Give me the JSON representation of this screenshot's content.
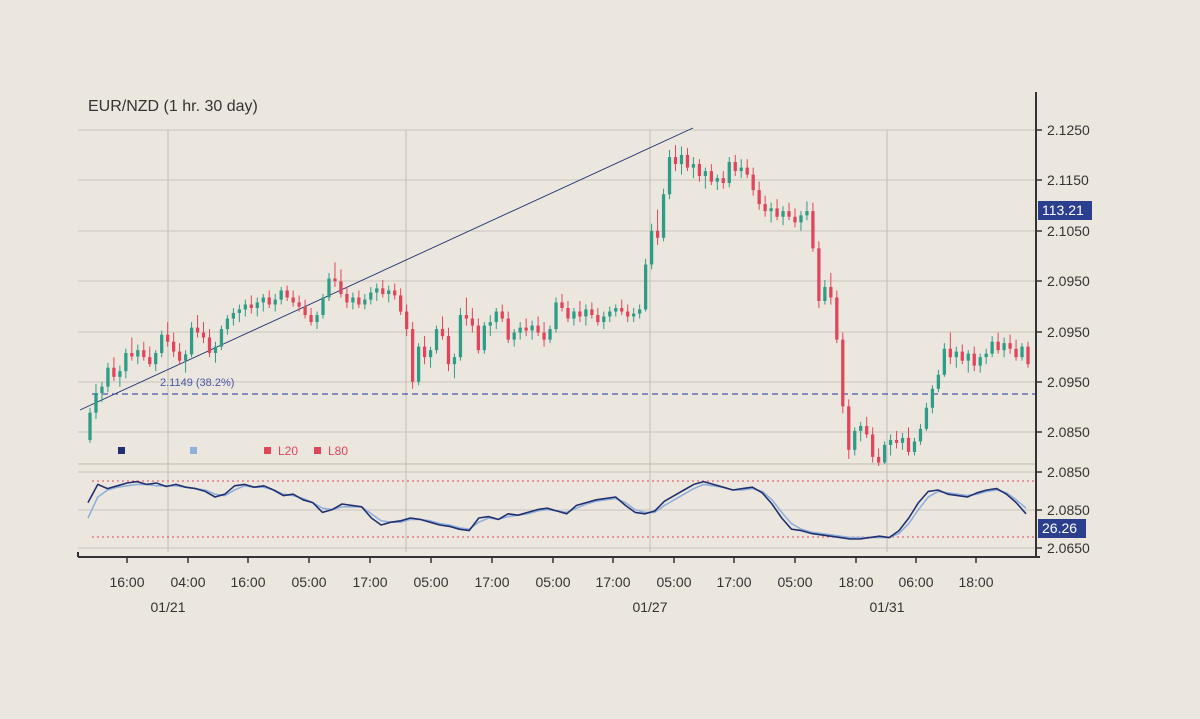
{
  "chart_data": {
    "type": "candlestick",
    "title": "EUR/NZD (1 hr.  30 day)",
    "colors": {
      "up": "#2e9c86",
      "down": "#e0455a",
      "line_dark": "#22306e",
      "line_light": "#8fb0dc",
      "fib": "#4a56a6",
      "level": "#e0455a",
      "badge": "#2c3f8f",
      "grid": "#c9c5bd"
    },
    "x_axis": {
      "time_labels": [
        "16:00",
        "04:00",
        "16:00",
        "05:00",
        "17:00",
        "05:00",
        "17:00",
        "05:00",
        "17:00",
        "05:00",
        "17:00",
        "05:00",
        "18:00",
        "06:00",
        "18:00"
      ],
      "date_labels": [
        "01/21",
        "01/27",
        "01/31"
      ],
      "date_positions": [
        2,
        9,
        12
      ]
    },
    "price_axis": {
      "tick_labels": [
        "2.1250",
        "2.1150",
        "2.1050",
        "2.0950",
        "2.0950",
        "2.0950",
        "2.0850"
      ],
      "badge": "113.21"
    },
    "oscillator_axis": {
      "tick_labels": [
        "2.0850",
        "2.0850",
        "2.0650"
      ],
      "badge": "26.26"
    },
    "fib_label": "2.1149 (38.2%)",
    "legend": [
      {
        "label": "",
        "color": "#22306e"
      },
      {
        "label": "",
        "color": "#8fb0dc"
      },
      {
        "label": "L20",
        "color": "#e0455a"
      },
      {
        "label": "L80",
        "color": "#e0455a"
      }
    ],
    "candles": [
      [
        2.0822,
        2.0868,
        2.0818,
        2.0861
      ],
      [
        2.0861,
        2.0902,
        2.0852,
        2.0889
      ],
      [
        2.0889,
        2.0905,
        2.0876,
        2.0898
      ],
      [
        2.0898,
        2.0932,
        2.089,
        2.0925
      ],
      [
        2.0925,
        2.094,
        2.0906,
        2.0912
      ],
      [
        2.0912,
        2.0928,
        2.0898,
        2.092
      ],
      [
        2.092,
        2.0952,
        2.091,
        2.0946
      ],
      [
        2.0946,
        2.0968,
        2.0935,
        2.0941
      ],
      [
        2.0941,
        2.0958,
        2.093,
        2.095
      ],
      [
        2.095,
        2.0962,
        2.0935,
        2.094
      ],
      [
        2.094,
        2.0955,
        2.0926,
        2.093
      ],
      [
        2.093,
        2.095,
        2.092,
        2.0946
      ],
      [
        2.0946,
        2.0978,
        2.094,
        2.0972
      ],
      [
        2.0972,
        2.099,
        2.0955,
        2.0962
      ],
      [
        2.0962,
        2.0975,
        2.094,
        2.0948
      ],
      [
        2.0948,
        2.096,
        2.093,
        2.0935
      ],
      [
        2.0935,
        2.095,
        2.0918,
        2.0944
      ],
      [
        2.0944,
        2.099,
        2.094,
        2.0982
      ],
      [
        2.0982,
        2.1,
        2.0968,
        2.0975
      ],
      [
        2.0975,
        2.099,
        2.096,
        2.0968
      ],
      [
        2.0968,
        2.098,
        2.094,
        2.0946
      ],
      [
        2.0946,
        2.0962,
        2.0932,
        2.0955
      ],
      [
        2.0955,
        2.0985,
        2.095,
        2.098
      ],
      [
        2.098,
        2.1,
        2.0972,
        2.0995
      ],
      [
        2.0995,
        2.101,
        2.0985,
        2.1003
      ],
      [
        2.1003,
        2.1015,
        2.099,
        2.1008
      ],
      [
        2.1008,
        2.1022,
        2.0998,
        2.1015
      ],
      [
        2.1015,
        2.1028,
        2.1002,
        2.101
      ],
      [
        2.101,
        2.1025,
        2.0998,
        2.1018
      ],
      [
        2.1018,
        2.103,
        2.1005,
        2.1025
      ],
      [
        2.1025,
        2.1035,
        2.101,
        2.1015
      ],
      [
        2.1015,
        2.103,
        2.1005,
        2.1022
      ],
      [
        2.1022,
        2.104,
        2.1015,
        2.1035
      ],
      [
        2.1035,
        2.1042,
        2.102,
        2.1025
      ],
      [
        2.1025,
        2.1035,
        2.1012,
        2.1018
      ],
      [
        2.1018,
        2.1028,
        2.1005,
        2.1012
      ],
      [
        2.1012,
        2.1022,
        2.0995,
        2.1
      ],
      [
        2.1,
        2.101,
        2.0985,
        2.099
      ],
      [
        2.099,
        2.1005,
        2.098,
        2.1
      ],
      [
        2.1,
        2.103,
        2.0995,
        2.1025
      ],
      [
        2.1025,
        2.106,
        2.102,
        2.1052
      ],
      [
        2.1052,
        2.1075,
        2.104,
        2.1048
      ],
      [
        2.1048,
        2.1065,
        2.1025,
        2.103
      ],
      [
        2.103,
        2.104,
        2.101,
        2.1018
      ],
      [
        2.1018,
        2.1032,
        2.1008,
        2.1025
      ],
      [
        2.1025,
        2.1035,
        2.101,
        2.1015
      ],
      [
        2.1015,
        2.103,
        2.1008,
        2.1022
      ],
      [
        2.1022,
        2.104,
        2.1015,
        2.1032
      ],
      [
        2.1032,
        2.1045,
        2.102,
        2.1038
      ],
      [
        2.1038,
        2.105,
        2.1025,
        2.103
      ],
      [
        2.103,
        2.1042,
        2.1018,
        2.1035
      ],
      [
        2.1035,
        2.1045,
        2.1022,
        2.1028
      ],
      [
        2.1028,
        2.1038,
        2.1,
        2.1005
      ],
      [
        2.1005,
        2.1015,
        2.097,
        2.098
      ],
      [
        2.098,
        2.099,
        2.0895,
        2.0905
      ],
      [
        2.0905,
        2.096,
        2.09,
        2.0955
      ],
      [
        2.0955,
        2.097,
        2.093,
        2.094
      ],
      [
        2.094,
        2.0955,
        2.0925,
        2.095
      ],
      [
        2.095,
        2.0985,
        2.0945,
        2.098
      ],
      [
        2.098,
        2.0998,
        2.0965,
        2.097
      ],
      [
        2.097,
        2.0982,
        2.092,
        2.093
      ],
      [
        2.093,
        2.0945,
        2.091,
        2.094
      ],
      [
        2.094,
        2.101,
        2.0935,
        2.1
      ],
      [
        2.1,
        2.1025,
        2.0985,
        2.0995
      ],
      [
        2.0995,
        2.101,
        2.0975,
        2.0985
      ],
      [
        2.0985,
        2.0995,
        2.0945,
        2.095
      ],
      [
        2.095,
        2.099,
        2.0945,
        2.0985
      ],
      [
        2.0985,
        2.1,
        2.097,
        2.099
      ],
      [
        2.099,
        2.101,
        2.098,
        2.1005
      ],
      [
        2.1005,
        2.1015,
        2.099,
        2.0995
      ],
      [
        2.0995,
        2.1005,
        2.096,
        2.0965
      ],
      [
        2.0965,
        2.098,
        2.0955,
        2.0975
      ],
      [
        2.0975,
        2.099,
        2.0965,
        2.0982
      ],
      [
        2.0982,
        2.0995,
        2.097,
        2.0978
      ],
      [
        2.0978,
        2.0992,
        2.0965,
        2.0985
      ],
      [
        2.0985,
        2.0998,
        2.097,
        2.0975
      ],
      [
        2.0975,
        2.099,
        2.0955,
        2.0965
      ],
      [
        2.0965,
        2.0985,
        2.096,
        2.098
      ],
      [
        2.098,
        2.1025,
        2.0975,
        2.1018
      ],
      [
        2.1018,
        2.103,
        2.1005,
        2.101
      ],
      [
        2.101,
        2.102,
        2.099,
        2.0995
      ],
      [
        2.0995,
        2.101,
        2.0985,
        2.1005
      ],
      [
        2.1005,
        2.102,
        2.099,
        2.0998
      ],
      [
        2.0998,
        2.1015,
        2.0985,
        2.1008
      ],
      [
        2.1008,
        2.1018,
        2.0995,
        2.1
      ],
      [
        2.1,
        2.101,
        2.0985,
        2.099
      ],
      [
        2.099,
        2.1005,
        2.098,
        2.0998
      ],
      [
        2.0998,
        2.1012,
        2.099,
        2.1005
      ],
      [
        2.1005,
        2.1015,
        2.0998,
        2.101
      ],
      [
        2.101,
        2.1022,
        2.1,
        2.1005
      ],
      [
        2.1005,
        2.1015,
        2.099,
        2.0998
      ],
      [
        2.0998,
        2.101,
        2.099,
        2.1002
      ],
      [
        2.1002,
        2.1015,
        2.0995,
        2.1008
      ],
      [
        2.1008,
        2.108,
        2.1005,
        2.1072
      ],
      [
        2.1072,
        2.113,
        2.1065,
        2.112
      ],
      [
        2.112,
        2.115,
        2.11,
        2.111
      ],
      [
        2.111,
        2.118,
        2.1105,
        2.1172
      ],
      [
        2.1172,
        2.1235,
        2.1165,
        2.1225
      ],
      [
        2.1225,
        2.1242,
        2.1205,
        2.1215
      ],
      [
        2.1215,
        2.124,
        2.12,
        2.1228
      ],
      [
        2.1228,
        2.1238,
        2.1205,
        2.121
      ],
      [
        2.121,
        2.1225,
        2.1195,
        2.1215
      ],
      [
        2.1215,
        2.1222,
        2.119,
        2.1198
      ],
      [
        2.1198,
        2.121,
        2.118,
        2.1205
      ],
      [
        2.1205,
        2.1215,
        2.1185,
        2.119
      ],
      [
        2.119,
        2.12,
        2.1178,
        2.1195
      ],
      [
        2.1195,
        2.1205,
        2.118,
        2.1188
      ],
      [
        2.1188,
        2.1225,
        2.1182,
        2.1218
      ],
      [
        2.1218,
        2.1228,
        2.1198,
        2.1205
      ],
      [
        2.1205,
        2.1222,
        2.1195,
        2.121
      ],
      [
        2.121,
        2.1222,
        2.1195,
        2.12
      ],
      [
        2.12,
        2.121,
        2.117,
        2.1178
      ],
      [
        2.1178,
        2.119,
        2.115,
        2.1158
      ],
      [
        2.1158,
        2.117,
        2.114,
        2.1148
      ],
      [
        2.1148,
        2.116,
        2.1132,
        2.1152
      ],
      [
        2.1152,
        2.1165,
        2.1135,
        2.114
      ],
      [
        2.114,
        2.1155,
        2.1128,
        2.1148
      ],
      [
        2.1148,
        2.116,
        2.1135,
        2.114
      ],
      [
        2.114,
        2.1152,
        2.1125,
        2.1132
      ],
      [
        2.1132,
        2.1148,
        2.112,
        2.1142
      ],
      [
        2.1142,
        2.1162,
        2.1135,
        2.1148
      ],
      [
        2.1148,
        2.116,
        2.109,
        2.1095
      ],
      [
        2.1095,
        2.1105,
        2.101,
        2.102
      ],
      [
        2.102,
        2.105,
        2.1015,
        2.104
      ],
      [
        2.104,
        2.106,
        2.1015,
        2.1025
      ],
      [
        2.1025,
        2.1035,
        2.096,
        2.0965
      ],
      [
        2.0965,
        2.0975,
        2.086,
        2.087
      ],
      [
        2.087,
        2.088,
        2.0795,
        2.0808
      ],
      [
        2.0808,
        2.084,
        2.08,
        2.0835
      ],
      [
        2.0835,
        2.0848,
        2.082,
        2.0842
      ],
      [
        2.0842,
        2.0855,
        2.0825,
        2.083
      ],
      [
        2.083,
        2.084,
        2.079,
        2.0798
      ],
      [
        2.0798,
        2.081,
        2.0785,
        2.079
      ],
      [
        2.079,
        2.082,
        2.0788,
        2.0815
      ],
      [
        2.0815,
        2.083,
        2.08,
        2.0822
      ],
      [
        2.0822,
        2.0835,
        2.081,
        2.0818
      ],
      [
        2.0818,
        2.0832,
        2.0808,
        2.0825
      ],
      [
        2.0825,
        2.084,
        2.08,
        2.0805
      ],
      [
        2.0805,
        2.0825,
        2.08,
        2.082
      ],
      [
        2.082,
        2.0845,
        2.0815,
        2.0838
      ],
      [
        2.0838,
        2.0875,
        2.0835,
        2.0868
      ],
      [
        2.0868,
        2.09,
        2.086,
        2.0895
      ],
      [
        2.0895,
        2.0922,
        2.089,
        2.0915
      ],
      [
        2.0915,
        2.096,
        2.0912,
        2.0952
      ],
      [
        2.0952,
        2.0975,
        2.093,
        2.094
      ],
      [
        2.094,
        2.0955,
        2.0925,
        2.0948
      ],
      [
        2.0948,
        2.0958,
        2.093,
        2.0935
      ],
      [
        2.0935,
        2.095,
        2.0918,
        2.0945
      ],
      [
        2.0945,
        2.0955,
        2.092,
        2.0928
      ],
      [
        2.0928,
        2.0945,
        2.0918,
        2.094
      ],
      [
        2.094,
        2.0952,
        2.093,
        2.0945
      ],
      [
        2.0945,
        2.097,
        2.094,
        2.0962
      ],
      [
        2.0962,
        2.0975,
        2.0945,
        2.095
      ],
      [
        2.095,
        2.0968,
        2.094,
        2.096
      ],
      [
        2.096,
        2.0972,
        2.0945,
        2.0952
      ],
      [
        2.0952,
        2.0965,
        2.0935,
        2.094
      ],
      [
        2.094,
        2.096,
        2.0935,
        2.0955
      ],
      [
        2.0955,
        2.0962,
        2.0925,
        2.093
      ]
    ],
    "osc_dark": [
      62,
      88,
      82,
      86,
      90,
      92,
      88,
      90,
      85,
      88,
      84,
      82,
      78,
      70,
      74,
      86,
      88,
      84,
      86,
      80,
      72,
      74,
      66,
      62,
      48,
      52,
      60,
      58,
      56,
      40,
      30,
      34,
      36,
      40,
      38,
      34,
      30,
      28,
      24,
      22,
      40,
      42,
      38,
      46,
      44,
      48,
      52,
      54,
      50,
      46,
      58,
      62,
      66,
      68,
      70,
      58,
      48,
      46,
      50,
      64,
      72,
      80,
      88,
      92,
      88,
      84,
      80,
      82,
      84,
      76,
      60,
      40,
      24,
      22,
      18,
      16,
      14,
      12,
      10,
      10,
      12,
      14,
      12,
      22,
      40,
      62,
      78,
      80,
      74,
      72,
      70,
      76,
      80,
      82,
      74,
      62,
      46
    ],
    "osc_light": [
      40,
      70,
      80,
      84,
      86,
      88,
      88,
      86,
      86,
      86,
      84,
      82,
      80,
      74,
      72,
      80,
      86,
      84,
      84,
      80,
      74,
      72,
      68,
      62,
      54,
      52,
      56,
      56,
      56,
      46,
      36,
      34,
      34,
      38,
      38,
      36,
      32,
      30,
      26,
      24,
      34,
      40,
      38,
      42,
      44,
      46,
      50,
      52,
      50,
      48,
      54,
      60,
      64,
      66,
      68,
      62,
      52,
      48,
      48,
      58,
      66,
      74,
      82,
      88,
      86,
      84,
      80,
      80,
      82,
      78,
      66,
      48,
      32,
      24,
      20,
      18,
      16,
      14,
      12,
      12,
      12,
      12,
      12,
      18,
      32,
      52,
      70,
      78,
      76,
      74,
      72,
      74,
      78,
      80,
      76,
      66,
      54
    ]
  }
}
